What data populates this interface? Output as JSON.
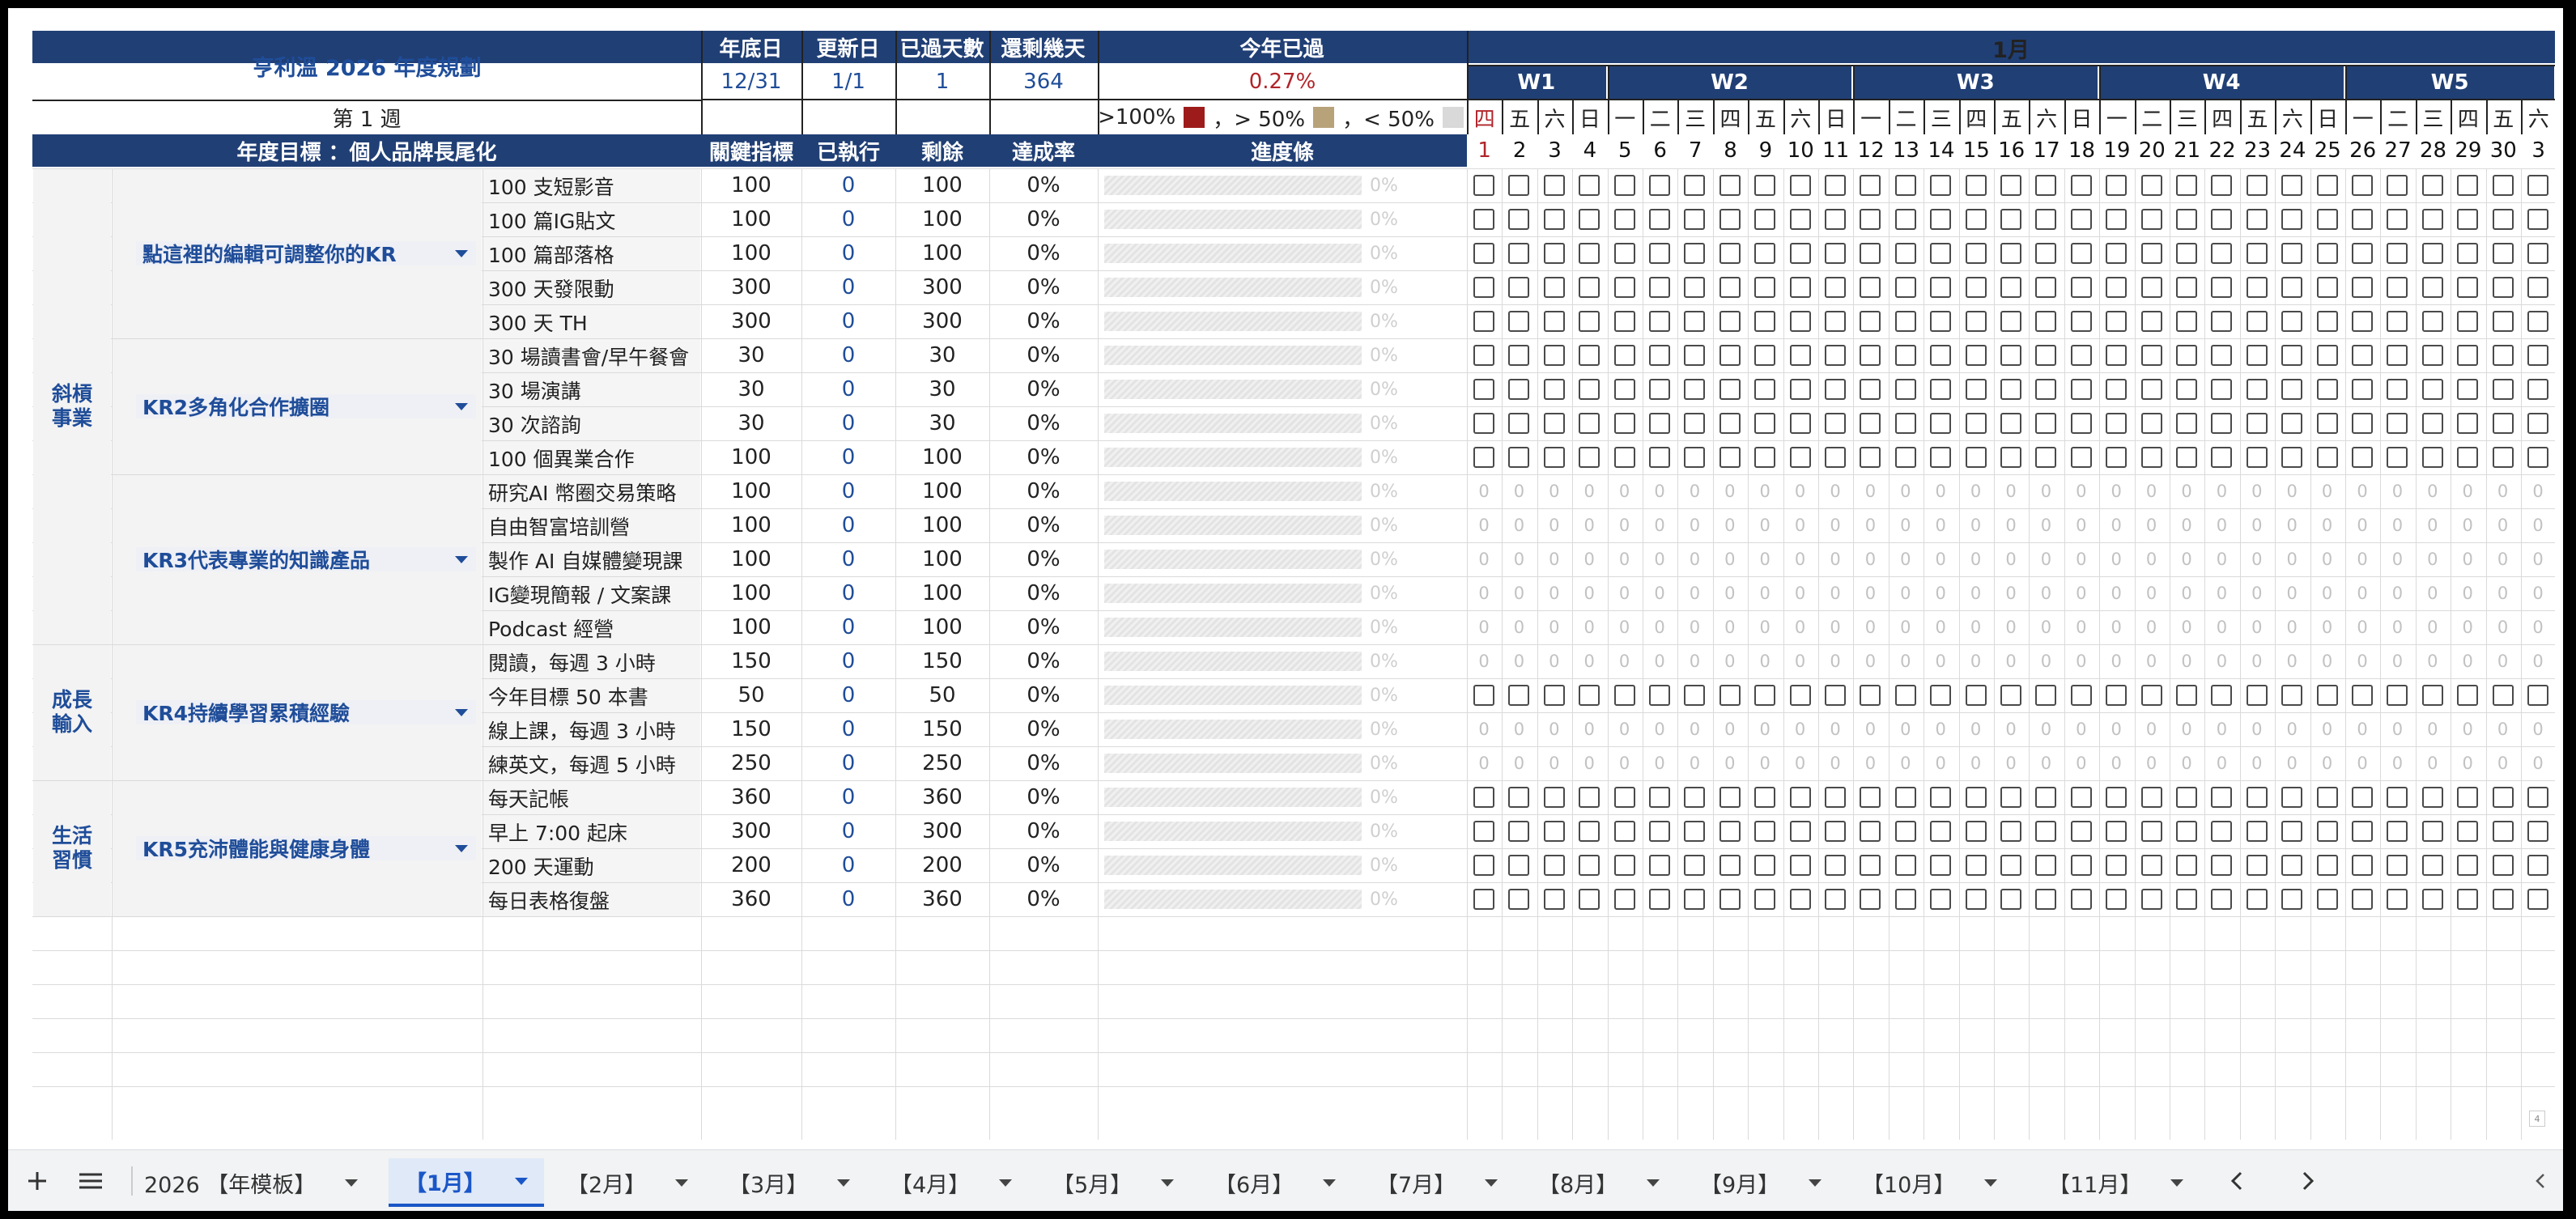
{
  "header": {
    "plan_title": "亨利溫 2026 年度規劃",
    "stats": [
      {
        "label": "年底日",
        "value": "12/31"
      },
      {
        "label": "更新日",
        "value": "1/1"
      },
      {
        "label": "已過天數",
        "value": "1"
      },
      {
        "label": "還剩幾天",
        "value": "364"
      }
    ],
    "year_passed_label": "今年已過",
    "year_passed_value": "0.27%",
    "week_label": "第 1 週",
    "legend": {
      "over100": ">100%",
      "over50": "，> 50%",
      "under50": "，< 50%"
    },
    "legend_colors": {
      "over100": "#9e1b1b",
      "over50": "#b8a27a",
      "under50": "#d9d9d9"
    },
    "month": "1月",
    "weeks": [
      "W1",
      "W2",
      "W3",
      "W4",
      "W5"
    ],
    "weekday_chars": [
      "四",
      "五",
      "六",
      "日",
      "一",
      "二",
      "三",
      "四",
      "五",
      "六",
      "日",
      "一",
      "二",
      "三",
      "四",
      "五",
      "六",
      "日",
      "一",
      "二",
      "三",
      "四",
      "五",
      "六",
      "日",
      "一",
      "二",
      "三",
      "四",
      "五",
      "六"
    ],
    "day_numbers": [
      "1",
      "2",
      "3",
      "4",
      "5",
      "6",
      "7",
      "8",
      "9",
      "10",
      "11",
      "12",
      "13",
      "14",
      "15",
      "16",
      "17",
      "18",
      "19",
      "20",
      "21",
      "22",
      "23",
      "24",
      "25",
      "26",
      "27",
      "28",
      "29",
      "30",
      "3"
    ]
  },
  "columns": {
    "goal": "年度目標 ：個人品牌長尾化",
    "target": "關鍵指標",
    "done": "已執行",
    "remaining": "剩餘",
    "rate": "達成率",
    "progress": "進度條"
  },
  "categories": [
    {
      "name": "斜槓\n事業",
      "krs": [
        {
          "label": "點這裡的編輯可調整你的KR",
          "items": [
            {
              "name": "100 支短影音",
              "target": "100",
              "done": "0",
              "remaining": "100",
              "rate": "0%",
              "bar_pct": "0%",
              "tracking": "checkbox"
            },
            {
              "name": "100 篇IG貼文",
              "target": "100",
              "done": "0",
              "remaining": "100",
              "rate": "0%",
              "bar_pct": "0%",
              "tracking": "checkbox"
            },
            {
              "name": "100 篇部落格",
              "target": "100",
              "done": "0",
              "remaining": "100",
              "rate": "0%",
              "bar_pct": "0%",
              "tracking": "checkbox"
            },
            {
              "name": "300 天發限動",
              "target": "300",
              "done": "0",
              "remaining": "300",
              "rate": "0%",
              "bar_pct": "0%",
              "tracking": "checkbox"
            },
            {
              "name": "300 天 TH",
              "target": "300",
              "done": "0",
              "remaining": "300",
              "rate": "0%",
              "bar_pct": "0%",
              "tracking": "checkbox"
            }
          ]
        },
        {
          "label": "KR2多角化合作擴圈",
          "items": [
            {
              "name": "30 場讀書會/早午餐會",
              "target": "30",
              "done": "0",
              "remaining": "30",
              "rate": "0%",
              "bar_pct": "0%",
              "tracking": "checkbox"
            },
            {
              "name": "30 場演講",
              "target": "30",
              "done": "0",
              "remaining": "30",
              "rate": "0%",
              "bar_pct": "0%",
              "tracking": "checkbox"
            },
            {
              "name": "30 次諮詢",
              "target": "30",
              "done": "0",
              "remaining": "30",
              "rate": "0%",
              "bar_pct": "0%",
              "tracking": "checkbox"
            },
            {
              "name": "100 個異業合作",
              "target": "100",
              "done": "0",
              "remaining": "100",
              "rate": "0%",
              "bar_pct": "0%",
              "tracking": "checkbox"
            }
          ]
        },
        {
          "label": "KR3代表專業的知識產品",
          "items": [
            {
              "name": "研究AI 幣圈交易策略",
              "target": "100",
              "done": "0",
              "remaining": "100",
              "rate": "0%",
              "bar_pct": "0%",
              "tracking": "numeric"
            },
            {
              "name": "自由智富培訓營",
              "target": "100",
              "done": "0",
              "remaining": "100",
              "rate": "0%",
              "bar_pct": "0%",
              "tracking": "numeric"
            },
            {
              "name": "製作 AI 自媒體變現課",
              "target": "100",
              "done": "0",
              "remaining": "100",
              "rate": "0%",
              "bar_pct": "0%",
              "tracking": "numeric"
            },
            {
              "name": "IG變現簡報 / 文案課",
              "target": "100",
              "done": "0",
              "remaining": "100",
              "rate": "0%",
              "bar_pct": "0%",
              "tracking": "numeric"
            },
            {
              "name": "Podcast 經營",
              "target": "100",
              "done": "0",
              "remaining": "100",
              "rate": "0%",
              "bar_pct": "0%",
              "tracking": "numeric"
            }
          ]
        }
      ]
    },
    {
      "name": "成長\n輸入",
      "krs": [
        {
          "label": "KR4持續學習累積經驗",
          "items": [
            {
              "name": "閱讀，每週 3 小時",
              "target": "150",
              "done": "0",
              "remaining": "150",
              "rate": "0%",
              "bar_pct": "0%",
              "tracking": "numeric"
            },
            {
              "name": "今年目標 50 本書",
              "target": "50",
              "done": "0",
              "remaining": "50",
              "rate": "0%",
              "bar_pct": "0%",
              "tracking": "checkbox"
            },
            {
              "name": "線上課，每週 3 小時",
              "target": "150",
              "done": "0",
              "remaining": "150",
              "rate": "0%",
              "bar_pct": "0%",
              "tracking": "numeric"
            },
            {
              "name": "練英文，每週 5 小時",
              "target": "250",
              "done": "0",
              "remaining": "250",
              "rate": "0%",
              "bar_pct": "0%",
              "tracking": "numeric"
            }
          ]
        }
      ]
    },
    {
      "name": "生活\n習慣",
      "krs": [
        {
          "label": "KR5充沛體能與健康身體",
          "items": [
            {
              "name": "每天記帳",
              "target": "360",
              "done": "0",
              "remaining": "360",
              "rate": "0%",
              "bar_pct": "0%",
              "tracking": "checkbox"
            },
            {
              "name": "早上 7:00 起床",
              "target": "300",
              "done": "0",
              "remaining": "300",
              "rate": "0%",
              "bar_pct": "0%",
              "tracking": "checkbox"
            },
            {
              "name": "200 天運動",
              "target": "200",
              "done": "0",
              "remaining": "200",
              "rate": "0%",
              "bar_pct": "0%",
              "tracking": "checkbox"
            },
            {
              "name": "每日表格復盤",
              "target": "360",
              "done": "0",
              "remaining": "360",
              "rate": "0%",
              "bar_pct": "0%",
              "tracking": "checkbox"
            }
          ]
        }
      ]
    }
  ],
  "numeric_cell_value": "0",
  "scroll_indicator": "4",
  "tabs": [
    "2026 【年模板】",
    "【1月】",
    "【2月】",
    "【3月】",
    "【4月】",
    "【5月】",
    "【6月】",
    "【7月】",
    "【8月】",
    "【9月】",
    "【10月】",
    "【11月】"
  ],
  "active_tab": 1,
  "tabbar_icons": [
    "plus-icon",
    "menu-icon",
    "chevron-left-icon",
    "chevron-right-icon"
  ],
  "colors": {
    "navy": "#203f75",
    "accent_blue": "#1f4d99",
    "red": "#b0252a",
    "tab_active": "#1a56c7"
  }
}
